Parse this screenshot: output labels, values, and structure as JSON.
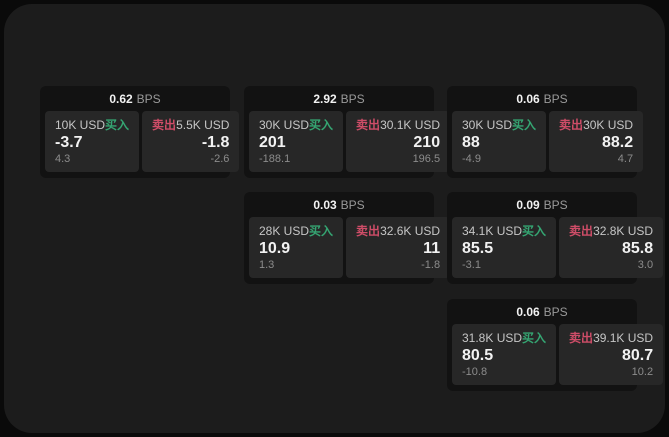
{
  "colors": {
    "backdrop": "#0a0a0a",
    "surface": "#1c1c1c",
    "card_bg": "#121212",
    "panel_bg": "#272727",
    "buy_green": "#35a572",
    "sell_red": "#cf4d68",
    "text_primary": "#f2f2f2",
    "text_label": "#c6c6c6",
    "text_secondary": "#9a9a9a",
    "text_muted": "#8c8c8c"
  },
  "labels": {
    "bps_unit": "BPS",
    "buy": "买入",
    "sell": "卖出"
  },
  "cards": [
    {
      "bps": "0.62",
      "col": 0,
      "row": 0,
      "buy": {
        "amount": "10K USD",
        "price": "-3.7",
        "delta": "4.3"
      },
      "sell": {
        "amount": "5.5K USD",
        "price": "-1.8",
        "delta": "-2.6"
      }
    },
    {
      "bps": "2.92",
      "col": 1,
      "row": 0,
      "buy": {
        "amount": "30K USD",
        "price": "201",
        "delta": "-188.1"
      },
      "sell": {
        "amount": "30.1K USD",
        "price": "210",
        "delta": "196.5"
      }
    },
    {
      "bps": "0.06",
      "col": 2,
      "row": 0,
      "buy": {
        "amount": "30K USD",
        "price": "88",
        "delta": "-4.9"
      },
      "sell": {
        "amount": "30K USD",
        "price": "88.2",
        "delta": "4.7"
      }
    },
    {
      "bps": "0.03",
      "col": 1,
      "row": 1,
      "buy": {
        "amount": "28K USD",
        "price": "10.9",
        "delta": "1.3"
      },
      "sell": {
        "amount": "32.6K USD",
        "price": "11",
        "delta": "-1.8"
      }
    },
    {
      "bps": "0.09",
      "col": 2,
      "row": 1,
      "buy": {
        "amount": "34.1K USD",
        "price": "85.5",
        "delta": "-3.1"
      },
      "sell": {
        "amount": "32.8K USD",
        "price": "85.8",
        "delta": "3.0"
      }
    },
    {
      "bps": "0.06",
      "col": 2,
      "row": 2,
      "buy": {
        "amount": "31.8K USD",
        "price": "80.5",
        "delta": "-10.8"
      },
      "sell": {
        "amount": "39.1K USD",
        "price": "80.7",
        "delta": "10.2"
      }
    }
  ]
}
